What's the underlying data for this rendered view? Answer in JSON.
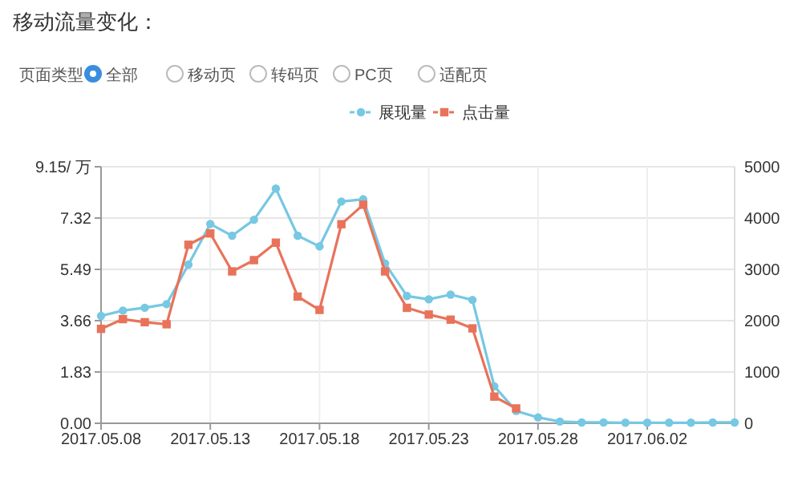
{
  "chart_data": {
    "type": "line",
    "title": "移动流量变化：",
    "annotations": [
      "页面类型",
      "全部",
      "移动页",
      "转码页",
      "PC页",
      "适配页"
    ],
    "x": [
      "2017-05-08",
      "2017-05-09",
      "2017-05-10",
      "2017-05-11",
      "2017-05-12",
      "2017-05-13",
      "2017-05-14",
      "2017-05-15",
      "2017-05-16",
      "2017-05-17",
      "2017-05-18",
      "2017-05-19",
      "2017-05-20",
      "2017-05-21",
      "2017-05-22",
      "2017-05-23",
      "2017-05-24",
      "2017-05-25",
      "2017-05-26",
      "2017-05-27",
      "2017-05-28",
      "2017-05-29",
      "2017-05-30",
      "2017-05-31",
      "2017-06-01",
      "2017-06-02",
      "2017-06-03",
      "2017-06-04",
      "2017-06-05",
      "2017-06-06"
    ],
    "series": [
      {
        "name": "展现量",
        "color": "#76c8e3",
        "marker": "circle",
        "values": [
          3.83,
          4.02,
          4.12,
          4.25,
          5.66,
          7.11,
          6.69,
          7.26,
          8.37,
          6.69,
          6.31,
          7.91,
          7.99,
          5.7,
          4.54,
          4.42,
          4.59,
          4.4,
          1.32,
          0.44,
          0.21,
          0.06,
          0.03,
          0.03,
          0.02,
          0.02,
          0.02,
          0.02,
          0.03,
          0.03
        ]
      },
      {
        "name": "点击量",
        "color": "#e8735a",
        "marker": "square",
        "axis": "y2",
        "values": [
          1840,
          2030,
          1970,
          1930,
          3480,
          3700,
          2960,
          3180,
          3520,
          2470,
          2210,
          3880,
          4260,
          2960,
          2250,
          2120,
          2020,
          1850,
          520,
          290,
          null,
          null,
          null,
          null,
          null,
          null,
          null,
          null,
          null,
          null
        ]
      }
    ],
    "xlim": [
      "2017-05-08",
      "2017-06-06"
    ],
    "xticks": [
      {
        "value": "2017-05-08",
        "label": "2017.05.08"
      },
      {
        "value": "2017-05-13",
        "label": "2017.05.13"
      },
      {
        "value": "2017-05-18",
        "label": "2017.05.18"
      },
      {
        "value": "2017-05-23",
        "label": "2017.05.23"
      },
      {
        "value": "2017-05-28",
        "label": "2017.05.28"
      },
      {
        "value": "2017-06-02",
        "label": "2017.06.02"
      }
    ],
    "ylim": [
      0,
      9.15
    ],
    "yticks": [
      {
        "value": 0,
        "label": "0.00"
      },
      1.83,
      3.66,
      5.49,
      7.32,
      {
        "value": 9.15,
        "label": "9.15/ 万"
      }
    ],
    "y2lim": [
      0,
      5000
    ],
    "y2ticks": [
      0,
      1000,
      2000,
      3000,
      4000,
      5000
    ],
    "grid": true,
    "legend": "top"
  }
}
